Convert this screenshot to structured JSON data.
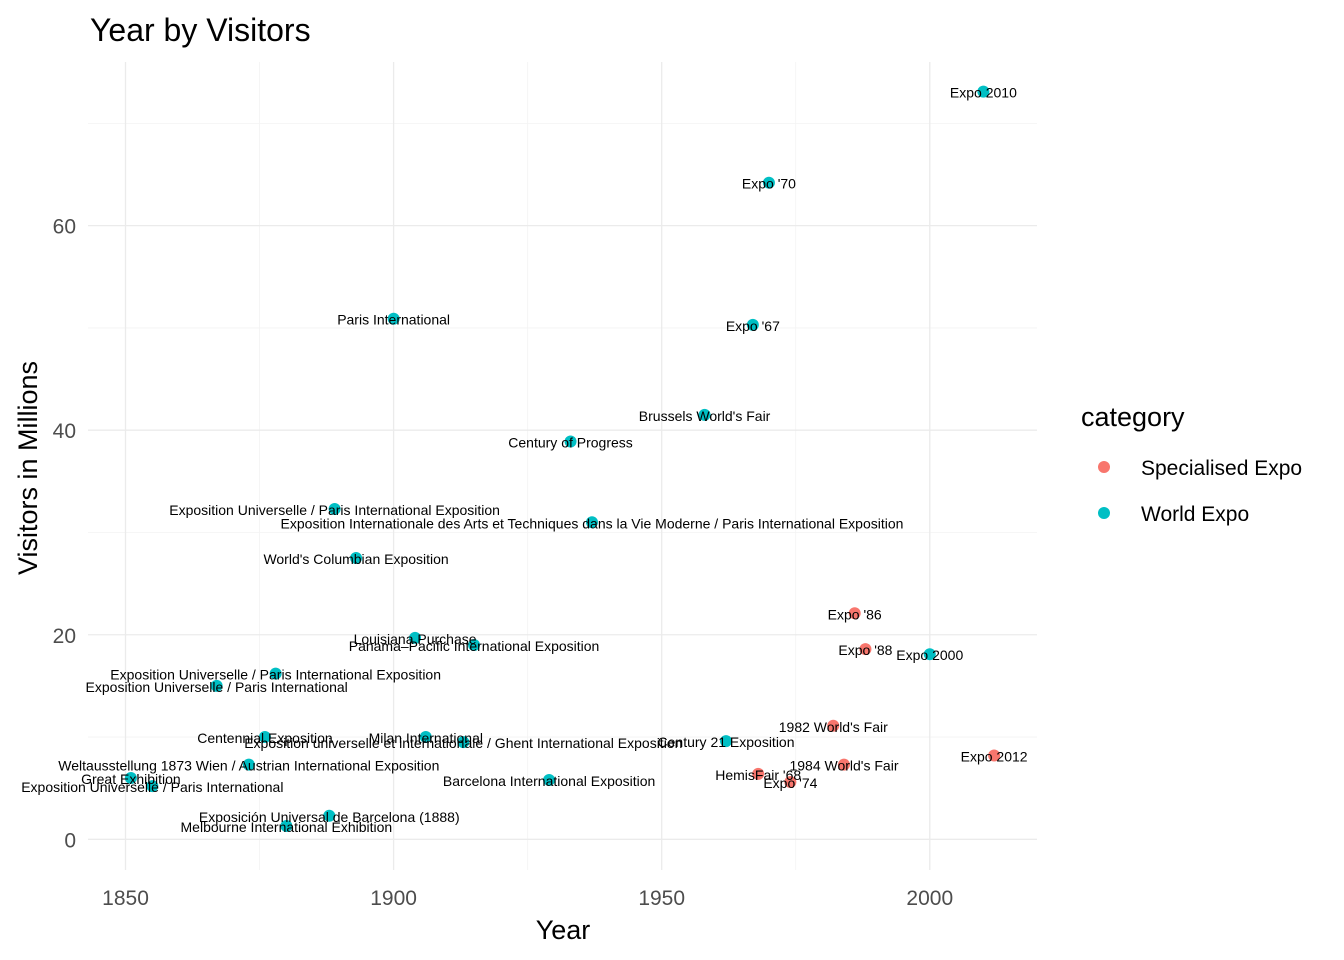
{
  "chart_data": {
    "type": "scatter",
    "title": "Year by Visitors",
    "xlabel": "Year",
    "ylabel": "Visitors in Millions",
    "xlim": [
      1843,
      2020
    ],
    "ylim": [
      -3,
      76
    ],
    "x_ticks": [
      1850,
      1900,
      1950,
      2000
    ],
    "y_ticks": [
      0,
      20,
      40,
      60
    ],
    "grid": true,
    "legend": {
      "title": "category",
      "position": "right",
      "entries": [
        {
          "name": "Specialised Expo",
          "color": "#F8766D"
        },
        {
          "name": "World Expo",
          "color": "#00BFC4"
        }
      ]
    },
    "points": [
      {
        "label": "Great Exhibition",
        "x": 1851,
        "y": 6.0,
        "category": "World Expo"
      },
      {
        "label": "Exposition Universelle / Paris International",
        "x": 1855,
        "y": 5.2,
        "category": "World Expo"
      },
      {
        "label": "Exposition Universelle / Paris International",
        "x": 1867,
        "y": 15.0,
        "category": "World Expo"
      },
      {
        "label": "Weltausstellung 1873 Wien / Austrian International Exposition",
        "x": 1873,
        "y": 7.3,
        "category": "World Expo"
      },
      {
        "label": "Centennial Exposition",
        "x": 1876,
        "y": 10.0,
        "category": "World Expo"
      },
      {
        "label": "Exposition Universelle / Paris International Exposition",
        "x": 1878,
        "y": 16.2,
        "category": "World Expo"
      },
      {
        "label": "Melbourne International Exhibition",
        "x": 1880,
        "y": 1.3,
        "category": "World Expo"
      },
      {
        "label": "Exposición Universal de Barcelona (1888)",
        "x": 1888,
        "y": 2.3,
        "category": "World Expo"
      },
      {
        "label": "Exposition Universelle / Paris International Exposition",
        "x": 1889,
        "y": 32.3,
        "category": "World Expo"
      },
      {
        "label": "World's Columbian Exposition",
        "x": 1893,
        "y": 27.5,
        "category": "World Expo"
      },
      {
        "label": "Paris International",
        "x": 1900,
        "y": 50.9,
        "category": "World Expo"
      },
      {
        "label": "Louisiana Purchase",
        "x": 1904,
        "y": 19.7,
        "category": "World Expo"
      },
      {
        "label": "Milan International",
        "x": 1906,
        "y": 10.0,
        "category": "World Expo"
      },
      {
        "label": "Exposition universelle et internationale / Ghent International Exposition",
        "x": 1913,
        "y": 9.5,
        "category": "World Expo"
      },
      {
        "label": "Panama–Pacific International Exposition",
        "x": 1915,
        "y": 19.0,
        "category": "World Expo"
      },
      {
        "label": "Barcelona International Exposition",
        "x": 1929,
        "y": 5.8,
        "category": "World Expo"
      },
      {
        "label": "Century of Progress",
        "x": 1933,
        "y": 38.9,
        "category": "World Expo"
      },
      {
        "label": "Exposition Internationale des Arts et Techniques dans la Vie Moderne / Paris International Exposition",
        "x": 1937,
        "y": 31.0,
        "category": "World Expo"
      },
      {
        "label": "Brussels World's Fair",
        "x": 1958,
        "y": 41.5,
        "category": "World Expo"
      },
      {
        "label": "Century 21 Exposition",
        "x": 1962,
        "y": 9.6,
        "category": "World Expo"
      },
      {
        "label": "Expo '67",
        "x": 1967,
        "y": 50.3,
        "category": "World Expo"
      },
      {
        "label": "HemisFair '68",
        "x": 1968,
        "y": 6.4,
        "category": "Specialised Expo"
      },
      {
        "label": "Expo '70",
        "x": 1970,
        "y": 64.2,
        "category": "World Expo"
      },
      {
        "label": "Expo '74",
        "x": 1974,
        "y": 5.6,
        "category": "Specialised Expo"
      },
      {
        "label": "1982 World's Fair",
        "x": 1982,
        "y": 11.1,
        "category": "Specialised Expo"
      },
      {
        "label": "1984 World's Fair",
        "x": 1984,
        "y": 7.3,
        "category": "Specialised Expo"
      },
      {
        "label": "Expo '86",
        "x": 1986,
        "y": 22.1,
        "category": "Specialised Expo"
      },
      {
        "label": "Expo '88",
        "x": 1988,
        "y": 18.6,
        "category": "Specialised Expo"
      },
      {
        "label": "Expo 2000",
        "x": 2000,
        "y": 18.1,
        "category": "World Expo"
      },
      {
        "label": "Expo 2010",
        "x": 2010,
        "y": 73.1,
        "category": "World Expo"
      },
      {
        "label": "Expo 2012",
        "x": 2012,
        "y": 8.2,
        "category": "Specialised Expo"
      }
    ]
  }
}
